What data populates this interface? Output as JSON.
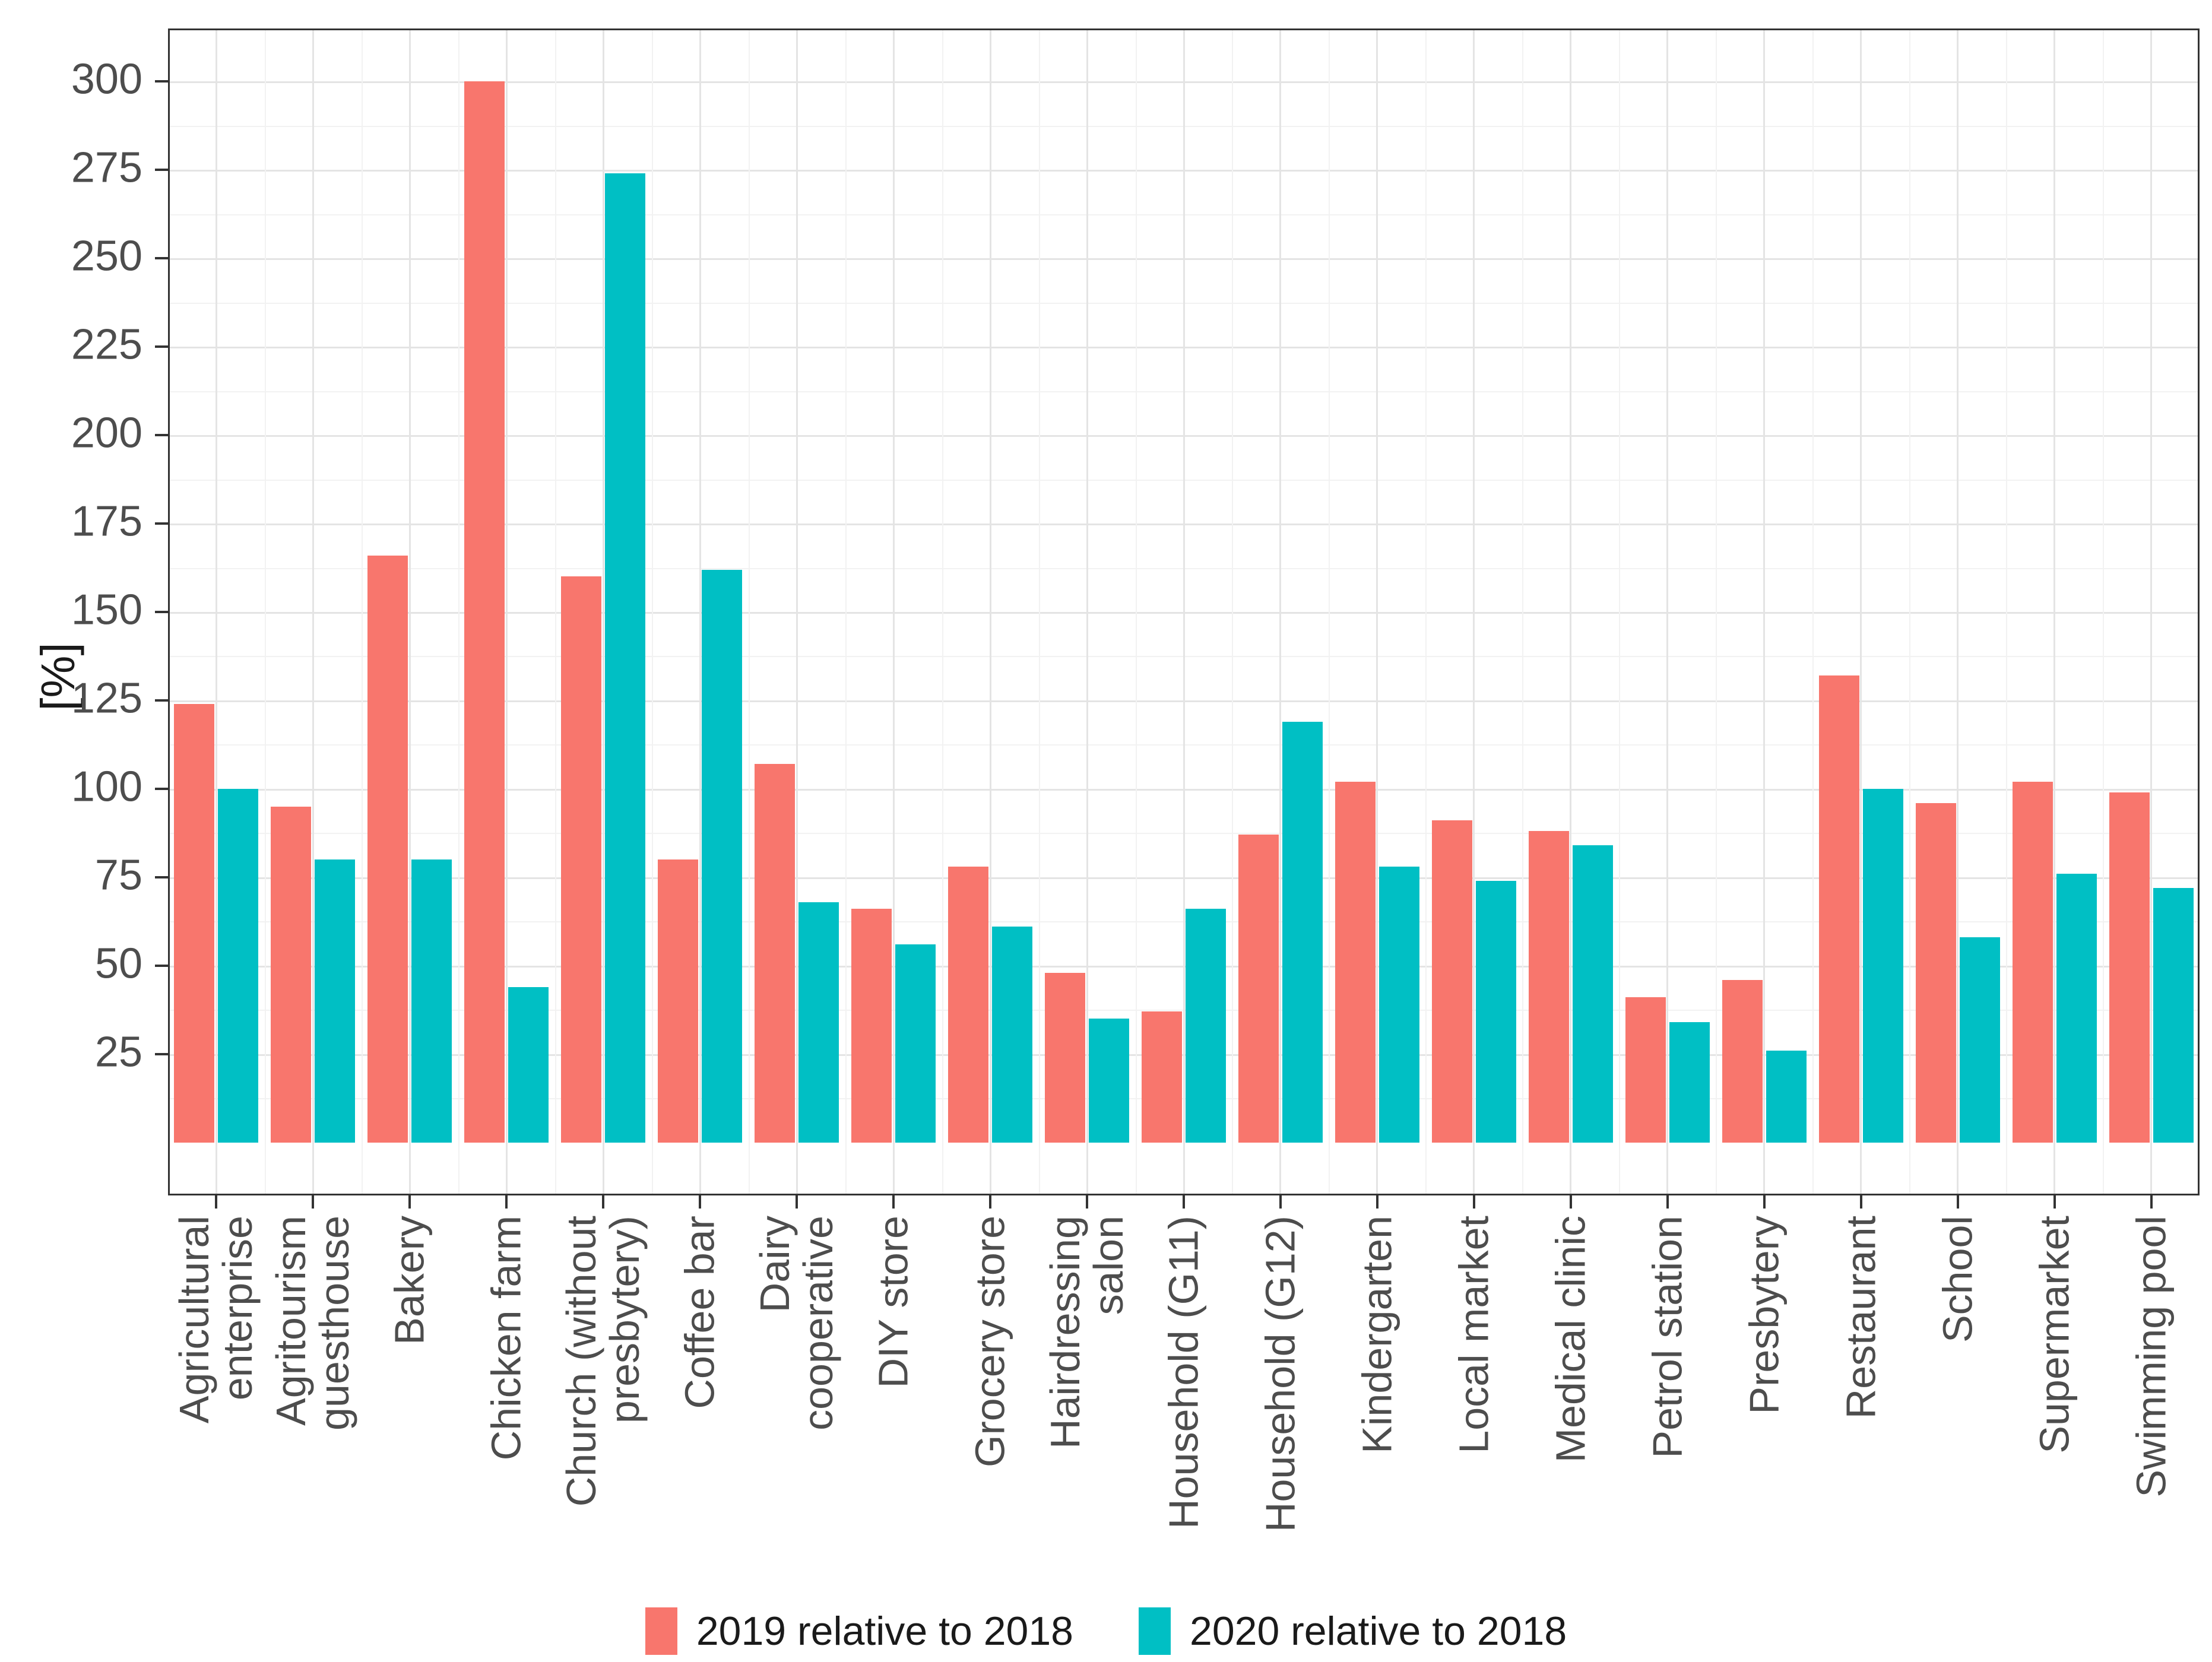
{
  "page": {
    "background": "#ffffff"
  },
  "y_axis": {
    "title": "[%]",
    "breaks": [
      25,
      50,
      75,
      100,
      125,
      150,
      175,
      200,
      225,
      250,
      275,
      300
    ],
    "text_color": "#4d4d4d"
  },
  "legend": {
    "items": [
      {
        "label": "2019 relative to 2018",
        "color": "#F8766D"
      },
      {
        "label": "2020 relative to 2018",
        "color": "#00BFC4"
      }
    ],
    "position": "bottom"
  },
  "chart_data": {
    "type": "bar",
    "title": "",
    "xlabel": "",
    "ylabel": "[%]",
    "ylim": [
      0,
      315
    ],
    "y_breaks": [
      25,
      50,
      75,
      100,
      125,
      150,
      175,
      200,
      225,
      250,
      275,
      300
    ],
    "grid": "major and minor, light gray on white panel",
    "legend_position": "bottom",
    "categories": [
      [
        "Agricultural",
        "enterprise"
      ],
      [
        "Agritourism",
        "guesthouse"
      ],
      [
        "Bakery"
      ],
      [
        "Chicken farm"
      ],
      [
        "Church (without",
        "presbytery)"
      ],
      [
        "Coffee bar"
      ],
      [
        "Dairy",
        "cooperative"
      ],
      [
        "DIY store"
      ],
      [
        "Grocery store"
      ],
      [
        "Hairdressing",
        "salon"
      ],
      [
        "Household (G11)"
      ],
      [
        "Household (G12)"
      ],
      [
        "Kindergarten"
      ],
      [
        "Local market"
      ],
      [
        "Medical clinic"
      ],
      [
        "Petrol station"
      ],
      [
        "Presbytery"
      ],
      [
        "Restaurant"
      ],
      [
        "School"
      ],
      [
        "Supermarket"
      ],
      [
        "Swimming pool"
      ]
    ],
    "series": [
      {
        "name": "2019 relative to 2018",
        "color": "#F8766D",
        "values": [
          124,
          95,
          166,
          300,
          160,
          80,
          107,
          66,
          78,
          48,
          37,
          87,
          102,
          91,
          88,
          41,
          46,
          132,
          96,
          102,
          99
        ]
      },
      {
        "name": "2020 relative to 2018",
        "color": "#00BFC4",
        "values": [
          100,
          80,
          80,
          44,
          274,
          162,
          68,
          56,
          61,
          35,
          66,
          119,
          78,
          74,
          84,
          34,
          26,
          100,
          58,
          76,
          72
        ]
      }
    ]
  }
}
